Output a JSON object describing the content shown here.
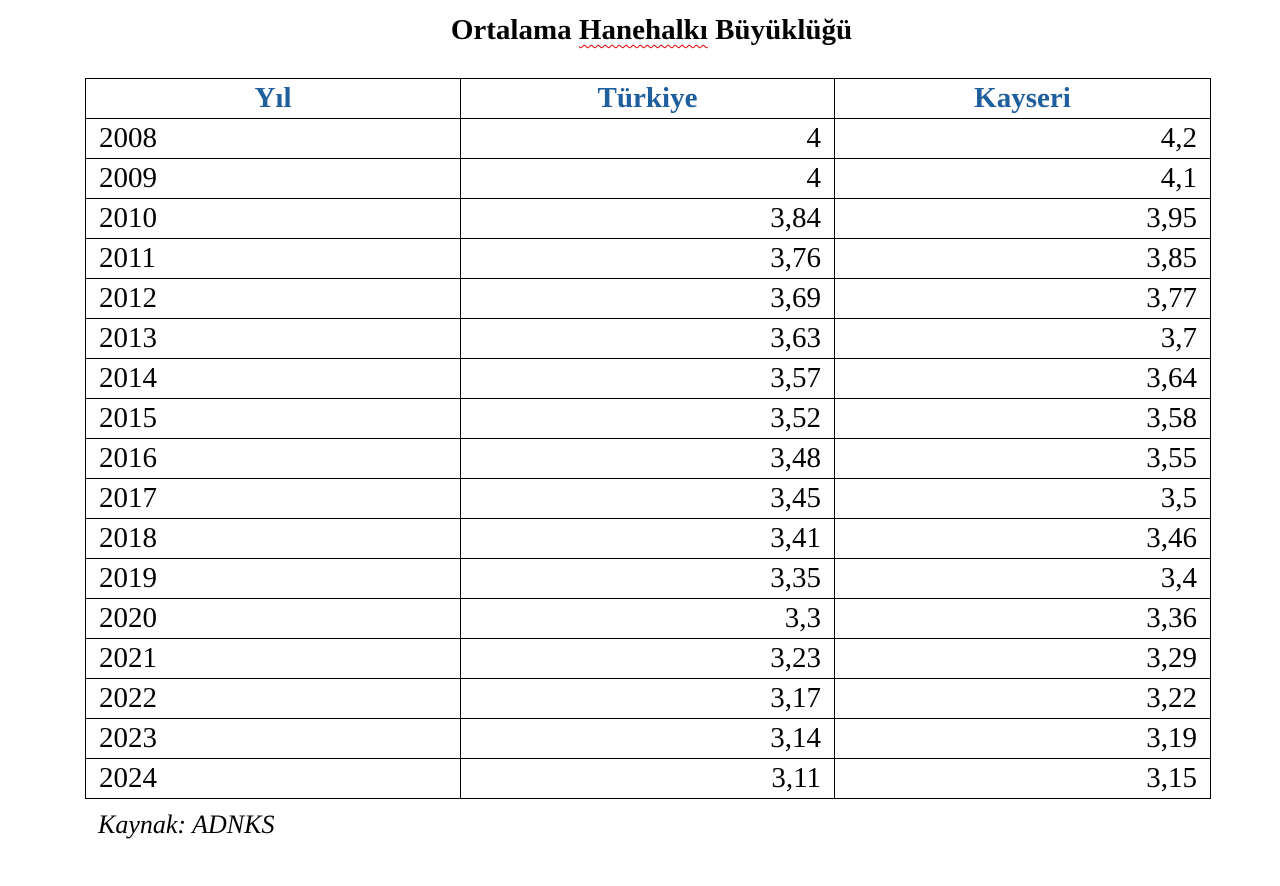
{
  "title_parts": [
    "Ortalama",
    "Hanehalkı",
    "Büyüklüğü"
  ],
  "table": {
    "header": [
      "Yıl",
      "Türkiye",
      "Kayseri"
    ],
    "rows": [
      [
        "2008",
        "4",
        "4,2"
      ],
      [
        "2009",
        "4",
        "4,1"
      ],
      [
        "2010",
        "3,84",
        "3,95"
      ],
      [
        "2011",
        "3,76",
        "3,85"
      ],
      [
        "2012",
        "3,69",
        "3,77"
      ],
      [
        "2013",
        "3,63",
        "3,7"
      ],
      [
        "2014",
        "3,57",
        "3,64"
      ],
      [
        "2015",
        "3,52",
        "3,58"
      ],
      [
        "2016",
        "3,48",
        "3,55"
      ],
      [
        "2017",
        "3,45",
        "3,5"
      ],
      [
        "2018",
        "3,41",
        "3,46"
      ],
      [
        "2019",
        "3,35",
        "3,4"
      ],
      [
        "2020",
        "3,3",
        "3,36"
      ],
      [
        "2021",
        "3,23",
        "3,29"
      ],
      [
        "2022",
        "3,17",
        "3,22"
      ],
      [
        "2023",
        "3,14",
        "3,19"
      ],
      [
        "2024",
        "3,11",
        "3,15"
      ]
    ]
  },
  "source": "Kaynak: ADNKS"
}
